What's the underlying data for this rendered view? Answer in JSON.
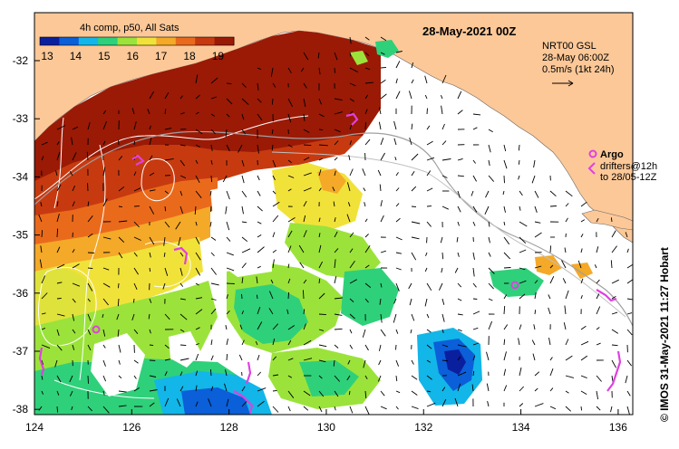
{
  "map": {
    "title": "28-May-2021 00Z",
    "colorbar": {
      "label": "4h comp, p50, All Sats",
      "ticks": [
        "13",
        "14",
        "15",
        "16",
        "17",
        "18",
        "19"
      ],
      "colors": [
        "#0a1f9e",
        "#0b5fd8",
        "#12b6e8",
        "#2fd07a",
        "#9be33a",
        "#f1e23a",
        "#f4a928",
        "#ea6a1c",
        "#c73a10",
        "#9a1a06"
      ]
    },
    "legend": {
      "model": "NRT00 GSL",
      "model_time": "28-May 06:00Z",
      "scale": "0.5m/s (1kt 24h)",
      "argo_label": "Argo",
      "drifters_line1": "drifters@12h",
      "drifters_line2": "to 28/05-12Z"
    },
    "credit": "© IMOS 31-May-2021 11:27 Hobart",
    "x_ticks": [
      "124",
      "126",
      "128",
      "130",
      "132",
      "134",
      "136"
    ],
    "y_ticks": [
      "-32",
      "-33",
      "-34",
      "-35",
      "-36",
      "-37",
      "-38"
    ],
    "colors": {
      "land": "#fcc898",
      "ocean": "#ffffff",
      "argo": "#e040e0"
    }
  }
}
